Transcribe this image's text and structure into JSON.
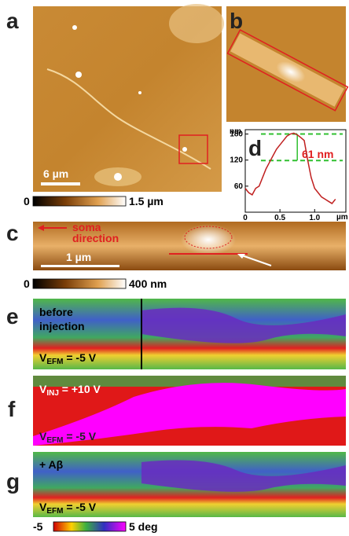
{
  "panel_labels": [
    "a",
    "b",
    "c",
    "d",
    "e",
    "f",
    "g"
  ],
  "panel_a": {
    "scale_bar": "6 µm",
    "colorbar": {
      "min": "0",
      "max": "1.5 µm"
    }
  },
  "panel_c": {
    "arrow_text": [
      "soma",
      "direction"
    ],
    "scale_bar": "1 µm",
    "colorbar": {
      "min": "0",
      "max": "400 nm"
    }
  },
  "panel_d": {
    "y_unit": "nm",
    "x_unit": "µm",
    "annotation": "61 nm",
    "xlim": [
      0,
      1.45
    ],
    "ylim": [
      0,
      190
    ],
    "xticks": [
      0,
      0.5,
      {
        "value": 1,
        "label": "1.0"
      }
    ],
    "yticks": [
      60,
      120,
      180
    ],
    "levels": [
      180,
      119
    ],
    "x": [
      0,
      0.05,
      0.1,
      0.15,
      0.2,
      0.25,
      0.3,
      0.35,
      0.4,
      0.45,
      0.5,
      0.55,
      0.6,
      0.65,
      0.7,
      0.75,
      0.8,
      0.85,
      0.9,
      0.95,
      1.0,
      1.05,
      1.1,
      1.15,
      1.2,
      1.25,
      1.3
    ],
    "values": [
      55,
      45,
      40,
      55,
      60,
      80,
      100,
      115,
      130,
      145,
      155,
      165,
      175,
      180,
      182,
      178,
      172,
      165,
      120,
      80,
      55,
      45,
      35,
      30,
      25,
      20,
      30
    ]
  },
  "panel_e": {
    "text": [
      "before",
      "injection"
    ],
    "voltage": {
      "main": "V",
      "sub": "EFM",
      "rest": " = -5 V"
    }
  },
  "panel_f": {
    "injection": {
      "main": "V",
      "sub": "INJ",
      "rest": " = +10 V"
    },
    "voltage": {
      "main": "V",
      "sub": "EFM",
      "rest": " = -5 V"
    }
  },
  "panel_g": {
    "text": "+ Aβ",
    "voltage": {
      "main": "V",
      "sub": "EFM",
      "rest": " = -5 V"
    }
  },
  "phase_colorbar": {
    "min": "-5",
    "max": "5 deg"
  }
}
